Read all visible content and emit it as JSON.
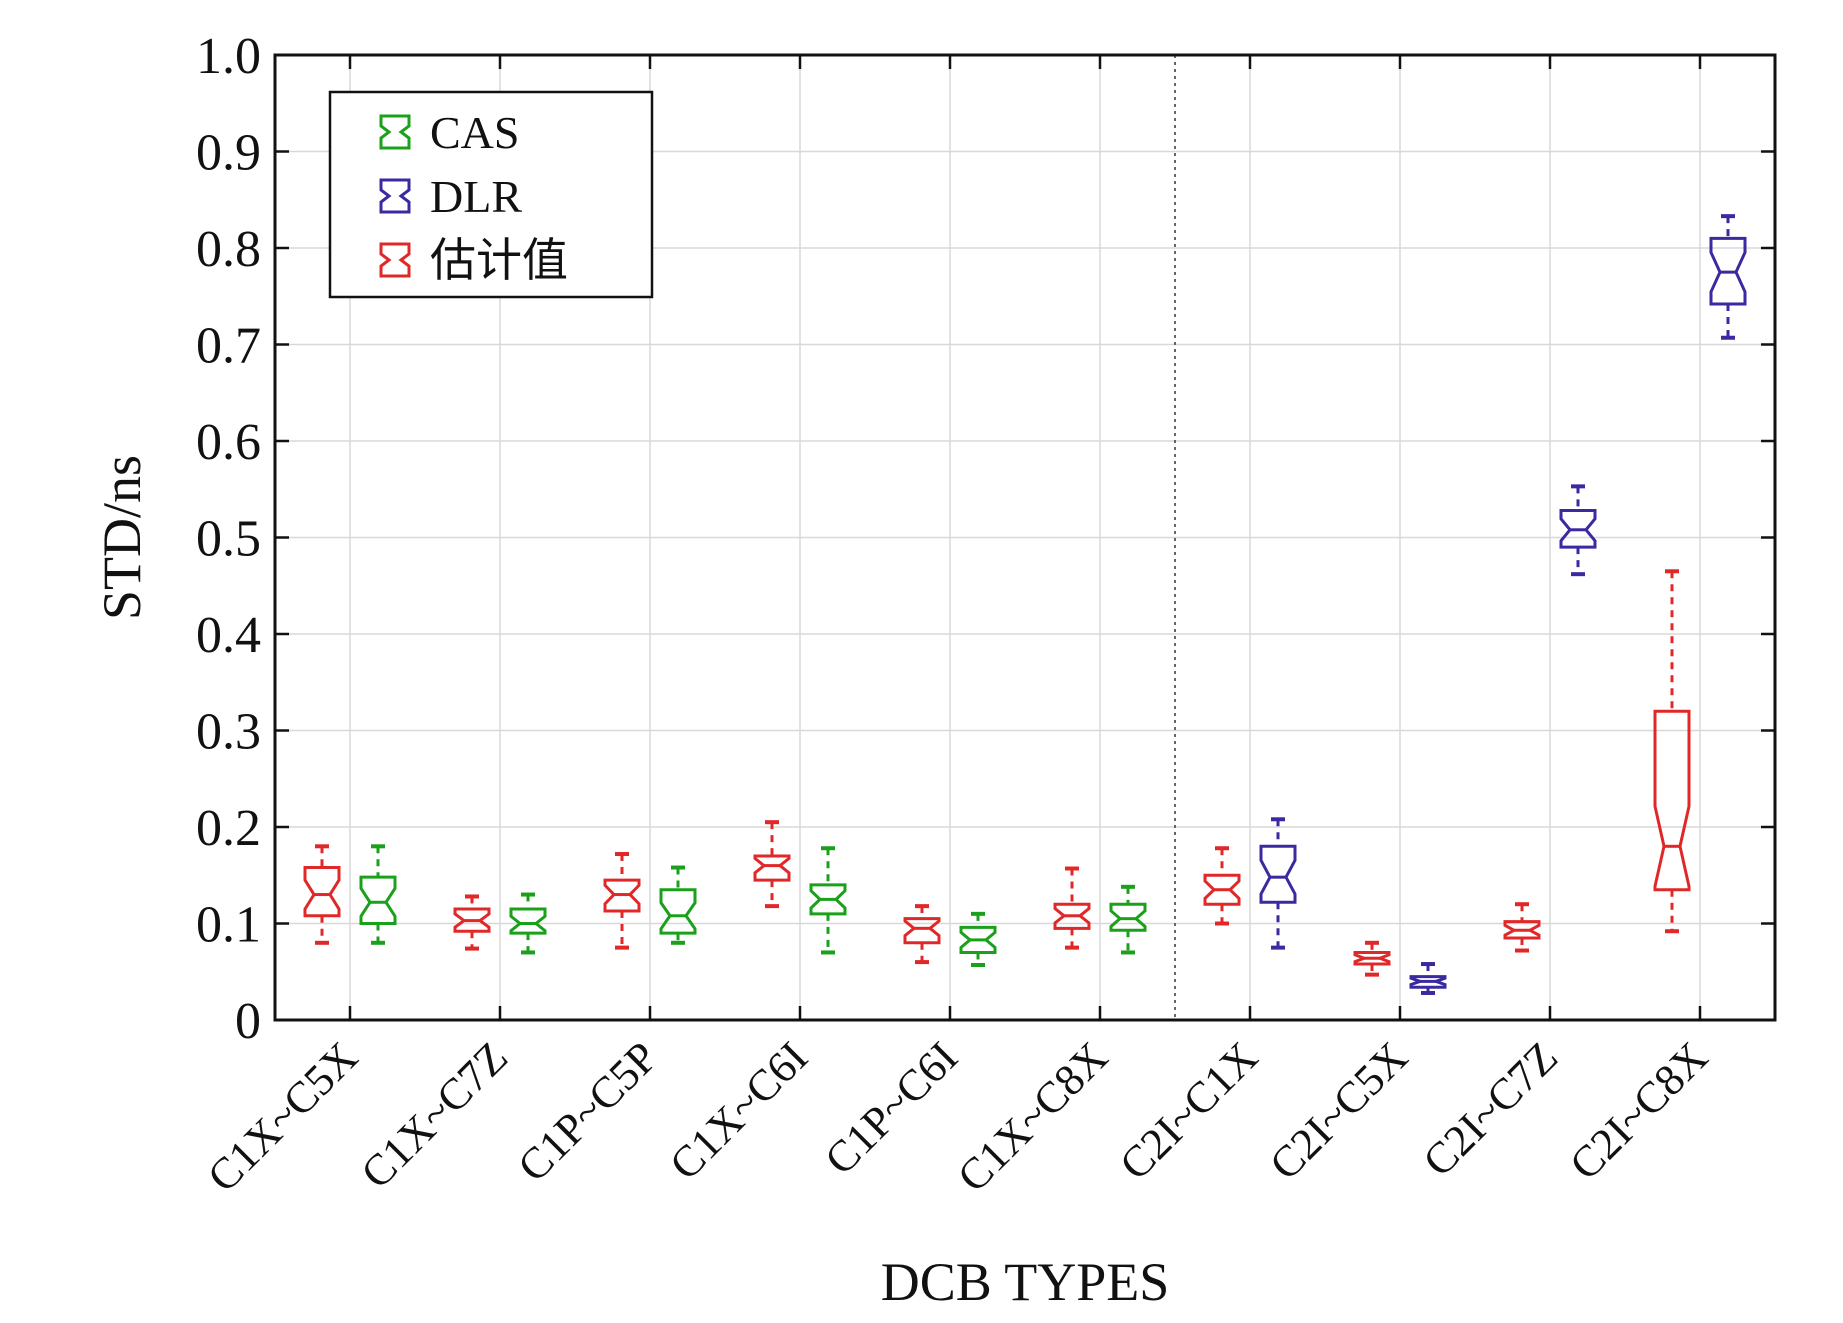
{
  "chart_data": {
    "type": "boxplot",
    "title": "",
    "xlabel": "DCB TYPES",
    "ylabel": "STD/ns",
    "ylim": [
      0,
      1.0
    ],
    "yticks": [
      "0",
      "0.1",
      "0.2",
      "0.3",
      "0.4",
      "0.5",
      "0.6",
      "0.7",
      "0.8",
      "0.9",
      "1.0"
    ],
    "categories": [
      "C1X~C5X",
      "C1X~C7Z",
      "C1P~C5P",
      "C1X~C6I",
      "C1P~C6I",
      "C1X~C8X",
      "C2I~C1X",
      "C2I~C5X",
      "C2I~C7Z",
      "C2I~C8X"
    ],
    "divider_after_category": 5,
    "legend": {
      "position": "top-left",
      "entries": [
        "CAS",
        "DLR",
        "估计值"
      ]
    },
    "colors": {
      "CAS": "#1aa01a",
      "DLR": "#3a2aa0",
      "估计值": "#e02828",
      "grid": "#d8d8d8",
      "axis": "#111111"
    },
    "series": [
      {
        "name": "估计值",
        "boxes": [
          {
            "category": "C1X~C5X",
            "min": 0.08,
            "q1": 0.108,
            "median": 0.13,
            "q3": 0.158,
            "max": 0.18
          },
          {
            "category": "C1X~C7Z",
            "min": 0.074,
            "q1": 0.092,
            "median": 0.103,
            "q3": 0.115,
            "max": 0.128
          },
          {
            "category": "C1P~C5P",
            "min": 0.075,
            "q1": 0.113,
            "median": 0.13,
            "q3": 0.145,
            "max": 0.172
          },
          {
            "category": "C1X~C6I",
            "min": 0.118,
            "q1": 0.145,
            "median": 0.16,
            "q3": 0.17,
            "max": 0.205
          },
          {
            "category": "C1P~C6I",
            "min": 0.06,
            "q1": 0.08,
            "median": 0.095,
            "q3": 0.105,
            "max": 0.118
          },
          {
            "category": "C1X~C8X",
            "min": 0.075,
            "q1": 0.095,
            "median": 0.108,
            "q3": 0.12,
            "max": 0.157
          },
          {
            "category": "C2I~C1X",
            "min": 0.1,
            "q1": 0.12,
            "median": 0.135,
            "q3": 0.15,
            "max": 0.178
          },
          {
            "category": "C2I~C5X",
            "min": 0.047,
            "q1": 0.058,
            "median": 0.064,
            "q3": 0.07,
            "max": 0.08
          },
          {
            "category": "C2I~C7Z",
            "min": 0.072,
            "q1": 0.085,
            "median": 0.093,
            "q3": 0.102,
            "max": 0.12
          },
          {
            "category": "C2I~C8X",
            "min": 0.092,
            "q1": 0.135,
            "median": 0.18,
            "q3": 0.32,
            "max": 0.465
          }
        ]
      },
      {
        "name": "CAS",
        "boxes": [
          {
            "category": "C1X~C5X",
            "min": 0.08,
            "q1": 0.1,
            "median": 0.122,
            "q3": 0.148,
            "max": 0.18
          },
          {
            "category": "C1X~C7Z",
            "min": 0.07,
            "q1": 0.09,
            "median": 0.1,
            "q3": 0.115,
            "max": 0.13
          },
          {
            "category": "C1P~C5P",
            "min": 0.08,
            "q1": 0.09,
            "median": 0.108,
            "q3": 0.135,
            "max": 0.158
          },
          {
            "category": "C1X~C6I",
            "min": 0.07,
            "q1": 0.11,
            "median": 0.125,
            "q3": 0.14,
            "max": 0.178
          },
          {
            "category": "C1P~C6I",
            "min": 0.057,
            "q1": 0.07,
            "median": 0.083,
            "q3": 0.096,
            "max": 0.11
          },
          {
            "category": "C1X~C8X",
            "min": 0.07,
            "q1": 0.093,
            "median": 0.105,
            "q3": 0.12,
            "max": 0.138
          }
        ]
      },
      {
        "name": "DLR",
        "boxes": [
          {
            "category": "C2I~C1X",
            "min": 0.075,
            "q1": 0.122,
            "median": 0.148,
            "q3": 0.18,
            "max": 0.208
          },
          {
            "category": "C2I~C5X",
            "min": 0.028,
            "q1": 0.034,
            "median": 0.04,
            "q3": 0.045,
            "max": 0.058
          },
          {
            "category": "C2I~C7Z",
            "min": 0.462,
            "q1": 0.49,
            "median": 0.508,
            "q3": 0.528,
            "max": 0.553
          },
          {
            "category": "C2I~C8X",
            "min": 0.707,
            "q1": 0.742,
            "median": 0.775,
            "q3": 0.81,
            "max": 0.833
          }
        ]
      }
    ]
  }
}
